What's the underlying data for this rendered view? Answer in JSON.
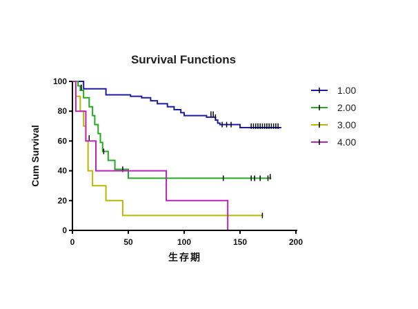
{
  "chart_data": {
    "type": "line",
    "step": true,
    "title": "Survival Functions",
    "xlabel": "生存期",
    "ylabel": "Cum Survival",
    "xlim": [
      0,
      200
    ],
    "ylim": [
      0,
      100
    ],
    "xticks": [
      0,
      50,
      100,
      150,
      200
    ],
    "yticks": [
      0,
      20,
      40,
      60,
      80,
      100
    ],
    "grid": false,
    "legend_position": "right",
    "series": [
      {
        "name": "1.00",
        "color": "#1a1aa6",
        "steps": [
          [
            0,
            100
          ],
          [
            10,
            95
          ],
          [
            30,
            91
          ],
          [
            52,
            90
          ],
          [
            62,
            89
          ],
          [
            70,
            87
          ],
          [
            76,
            85
          ],
          [
            85,
            83
          ],
          [
            91,
            81
          ],
          [
            97,
            79
          ],
          [
            100,
            77
          ],
          [
            120,
            76
          ],
          [
            128,
            74
          ],
          [
            130,
            72
          ],
          [
            132,
            71
          ],
          [
            150,
            69
          ],
          [
            187,
            69
          ]
        ],
        "censored": [
          [
            124,
            78
          ],
          [
            126,
            78
          ],
          [
            128,
            76
          ],
          [
            134,
            71
          ],
          [
            138,
            71
          ],
          [
            142,
            71
          ],
          [
            160,
            70
          ],
          [
            162,
            70
          ],
          [
            164,
            70
          ],
          [
            166,
            70
          ],
          [
            168,
            70
          ],
          [
            170,
            70
          ],
          [
            172,
            70
          ],
          [
            174,
            70
          ],
          [
            176,
            70
          ],
          [
            178,
            70
          ],
          [
            180,
            70
          ],
          [
            182,
            70
          ],
          [
            184,
            70
          ]
        ]
      },
      {
        "name": "2.00",
        "color": "#22aa22",
        "steps": [
          [
            0,
            100
          ],
          [
            5,
            97
          ],
          [
            7,
            94
          ],
          [
            10,
            89
          ],
          [
            15,
            83
          ],
          [
            18,
            77
          ],
          [
            20,
            71
          ],
          [
            23,
            65
          ],
          [
            25,
            59
          ],
          [
            27,
            53
          ],
          [
            32,
            47
          ],
          [
            38,
            41
          ],
          [
            50,
            35
          ],
          [
            178,
            35
          ]
        ],
        "censored": [
          [
            8,
            96
          ],
          [
            28,
            53
          ],
          [
            45,
            41
          ],
          [
            135,
            35
          ],
          [
            160,
            35
          ],
          [
            163,
            35
          ],
          [
            168,
            35
          ],
          [
            175,
            35
          ],
          [
            177,
            36
          ]
        ]
      },
      {
        "name": "3.00",
        "color": "#b8b800",
        "steps": [
          [
            0,
            100
          ],
          [
            3,
            90
          ],
          [
            7,
            80
          ],
          [
            10,
            70
          ],
          [
            12,
            60
          ],
          [
            14,
            40
          ],
          [
            18,
            30
          ],
          [
            30,
            20
          ],
          [
            45,
            10
          ],
          [
            170,
            10
          ]
        ],
        "censored": [
          [
            15,
            62
          ],
          [
            170,
            10
          ]
        ]
      },
      {
        "name": "4.00",
        "color": "#bb22bb",
        "steps": [
          [
            0,
            100
          ],
          [
            3,
            80
          ],
          [
            12,
            60
          ],
          [
            21,
            40
          ],
          [
            84,
            20
          ],
          [
            139,
            0
          ]
        ],
        "censored": []
      }
    ]
  }
}
